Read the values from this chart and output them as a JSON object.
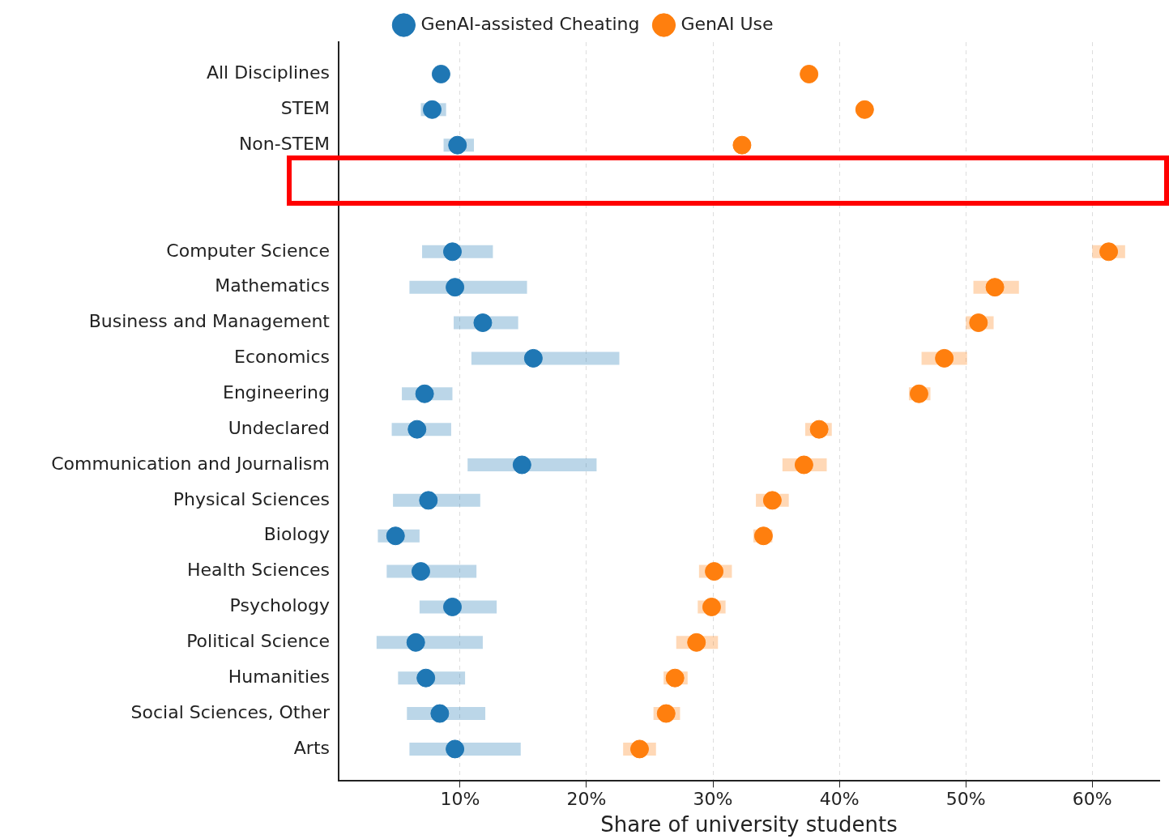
{
  "chart_data": {
    "type": "scatter",
    "orientation": "horizontal",
    "xlabel": "Share of university students",
    "categories": [
      "All Disciplines",
      "STEM",
      "Non-STEM",
      null,
      null,
      "Computer Science",
      "Mathematics",
      "Business and Management",
      "Economics",
      "Engineering",
      "Undeclared",
      "Communication and Journalism",
      "Physical Sciences",
      "Biology",
      "Health Sciences",
      "Psychology",
      "Political Science",
      "Humanities",
      "Social Sciences, Other",
      "Arts"
    ],
    "series": [
      {
        "name": "GenAI-assisted Cheating",
        "color": "#1f77b4",
        "values": [
          8.5,
          7.8,
          9.8,
          null,
          null,
          9.4,
          9.6,
          11.8,
          15.8,
          7.2,
          6.6,
          14.9,
          7.5,
          4.9,
          6.9,
          9.4,
          6.5,
          7.3,
          8.4,
          9.6
        ],
        "errors": [
          null,
          [
            6.9,
            8.9
          ],
          [
            8.7,
            11.1
          ],
          null,
          null,
          [
            7.0,
            12.6
          ],
          [
            6.0,
            15.3
          ],
          [
            9.5,
            14.6
          ],
          [
            10.9,
            22.6
          ],
          [
            5.4,
            9.4
          ],
          [
            4.6,
            9.3
          ],
          [
            10.6,
            20.8
          ],
          [
            4.7,
            11.6
          ],
          [
            3.5,
            6.8
          ],
          [
            4.2,
            11.3
          ],
          [
            6.8,
            12.9
          ],
          [
            3.4,
            11.8
          ],
          [
            5.1,
            10.4
          ],
          [
            5.8,
            12.0
          ],
          [
            6.0,
            14.8
          ]
        ]
      },
      {
        "name": "GenAI Use",
        "color": "#ff7f0e",
        "values": [
          37.6,
          42.0,
          32.3,
          null,
          null,
          61.3,
          52.3,
          51.0,
          48.3,
          46.3,
          38.4,
          37.2,
          34.7,
          34.0,
          30.1,
          29.9,
          28.7,
          27.0,
          26.3,
          24.2
        ],
        "errors": [
          null,
          null,
          null,
          null,
          null,
          [
            60.0,
            62.6
          ],
          [
            50.6,
            54.2
          ],
          [
            50.0,
            52.2
          ],
          [
            46.5,
            50.1
          ],
          [
            45.5,
            47.2
          ],
          [
            37.3,
            39.4
          ],
          [
            35.5,
            39.0
          ],
          [
            33.4,
            36.0
          ],
          [
            33.2,
            34.7
          ],
          [
            28.9,
            31.5
          ],
          [
            28.8,
            31.0
          ],
          [
            27.1,
            30.4
          ],
          [
            26.1,
            28.0
          ],
          [
            25.3,
            27.4
          ],
          [
            22.9,
            25.5
          ]
        ]
      }
    ],
    "xlim": [
      0.4,
      65.3
    ],
    "xticks": [
      {
        "value": 10,
        "label": "10%"
      },
      {
        "value": 20,
        "label": "20%"
      },
      {
        "value": 30,
        "label": "30%"
      },
      {
        "value": 40,
        "label": "40%"
      },
      {
        "value": 50,
        "label": "50%"
      },
      {
        "value": 60,
        "label": "60%"
      }
    ],
    "grid": "x",
    "legend": "top",
    "marker": "circle"
  }
}
